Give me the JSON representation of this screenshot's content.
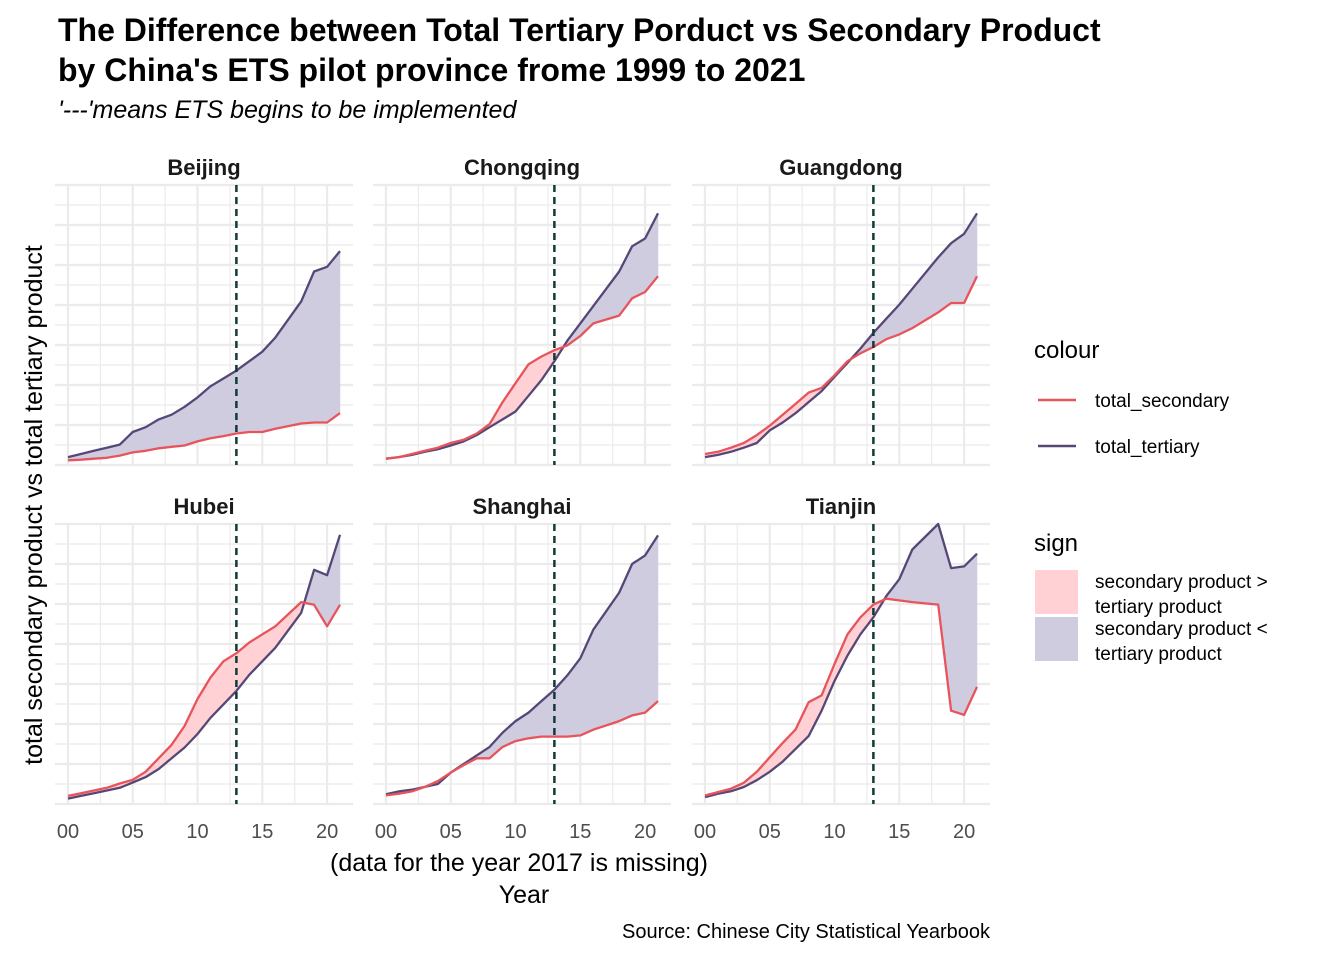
{
  "chart_data": {
    "type": "area",
    "title_lines": [
      "The Difference between Total Tertiary Porduct vs Secondary Product",
      "by China's ETS pilot province frome 1999 to 2021"
    ],
    "subtitle": "'---'means ETS begins to be implemented",
    "xlabel_lines": [
      "(data for the year 2017 is missing)",
      "Year"
    ],
    "ylabel": "total secondary product vs total tertiary product",
    "caption": "Source: Chinese City Statistical Yearbook",
    "x_ticks": [
      0,
      5,
      10,
      15,
      20
    ],
    "x_tick_labels": [
      "00",
      "05",
      "10",
      "15",
      "20"
    ],
    "xlim": [
      -1,
      22
    ],
    "ets_start_year": 13,
    "y_tick_labels_shown": false,
    "grid": true,
    "legend_position": "right",
    "legends": {
      "colour": {
        "title": "colour",
        "items": [
          {
            "label": "total_secondary",
            "color": "#E8545C"
          },
          {
            "label": "total_tertiary",
            "color": "#574777"
          }
        ]
      },
      "sign": {
        "title": "sign",
        "items": [
          {
            "label_lines": [
              "secondary product >",
              "tertiary product"
            ],
            "color": "#FFD1D4"
          },
          {
            "label_lines": [
              "secondary product <",
              "tertiary product"
            ],
            "color": "#D0CCE0"
          }
        ]
      }
    },
    "facets": [
      {
        "name": "Beijing",
        "ylim": [
          0,
          8.9
        ],
        "x": [
          0,
          1,
          2,
          3,
          4,
          5,
          6,
          7,
          8,
          9,
          10,
          11,
          12,
          13,
          14,
          15,
          16,
          18,
          19,
          20,
          21
        ],
        "total_secondary": [
          0.15,
          0.17,
          0.2,
          0.23,
          0.3,
          0.4,
          0.45,
          0.53,
          0.58,
          0.62,
          0.75,
          0.85,
          0.92,
          1.0,
          1.05,
          1.05,
          1.15,
          1.32,
          1.35,
          1.35,
          1.65
        ],
        "total_tertiary": [
          0.25,
          0.35,
          0.45,
          0.55,
          0.65,
          1.05,
          1.2,
          1.45,
          1.6,
          1.85,
          2.15,
          2.5,
          2.75,
          3.0,
          3.3,
          3.6,
          4.05,
          5.2,
          6.15,
          6.3,
          6.8
        ]
      },
      {
        "name": "Chongqing",
        "ylim": [
          0,
          8.9
        ],
        "x": [
          0,
          1,
          2,
          3,
          4,
          5,
          6,
          7,
          8,
          9,
          10,
          11,
          12,
          13,
          14,
          15,
          16,
          18,
          19,
          20,
          21
        ],
        "total_secondary": [
          0.2,
          0.25,
          0.35,
          0.45,
          0.55,
          0.7,
          0.8,
          1.0,
          1.3,
          2.0,
          2.6,
          3.2,
          3.45,
          3.65,
          3.8,
          4.1,
          4.5,
          4.75,
          5.3,
          5.5,
          6.0
        ],
        "total_tertiary": [
          0.2,
          0.25,
          0.32,
          0.42,
          0.5,
          0.62,
          0.75,
          0.95,
          1.2,
          1.45,
          1.7,
          2.2,
          2.7,
          3.3,
          3.95,
          4.5,
          5.05,
          6.15,
          6.95,
          7.2,
          8.0
        ]
      },
      {
        "name": "Guangdong",
        "ylim": [
          0,
          8.9
        ],
        "x": [
          0,
          1,
          2,
          3,
          4,
          5,
          6,
          7,
          8,
          9,
          10,
          11,
          12,
          13,
          14,
          15,
          16,
          18,
          19,
          20,
          21
        ],
        "total_secondary": [
          0.35,
          0.42,
          0.55,
          0.7,
          0.95,
          1.25,
          1.6,
          1.95,
          2.3,
          2.45,
          2.85,
          3.3,
          3.55,
          3.75,
          4.0,
          4.15,
          4.35,
          4.85,
          5.15,
          5.15,
          6.0
        ],
        "total_tertiary": [
          0.25,
          0.32,
          0.42,
          0.55,
          0.7,
          1.1,
          1.35,
          1.65,
          2.0,
          2.35,
          2.8,
          3.25,
          3.7,
          4.2,
          4.65,
          5.1,
          5.6,
          6.6,
          7.05,
          7.35,
          8.0
        ]
      },
      {
        "name": "Hubei",
        "ylim": [
          0,
          5.2
        ],
        "x": [
          0,
          1,
          2,
          3,
          4,
          5,
          6,
          7,
          8,
          9,
          10,
          11,
          12,
          13,
          14,
          15,
          16,
          18,
          19,
          20,
          21
        ],
        "total_secondary": [
          0.15,
          0.2,
          0.25,
          0.3,
          0.38,
          0.45,
          0.6,
          0.85,
          1.1,
          1.45,
          1.95,
          2.35,
          2.65,
          2.8,
          3.0,
          3.15,
          3.3,
          3.75,
          3.7,
          3.3,
          3.7
        ],
        "total_tertiary": [
          0.1,
          0.15,
          0.2,
          0.25,
          0.3,
          0.4,
          0.5,
          0.65,
          0.85,
          1.05,
          1.3,
          1.6,
          1.85,
          2.1,
          2.4,
          2.65,
          2.9,
          3.55,
          4.35,
          4.25,
          5.0
        ]
      },
      {
        "name": "Shanghai",
        "ylim": [
          0,
          4.9
        ],
        "x": [
          0,
          1,
          2,
          3,
          4,
          5,
          6,
          7,
          8,
          9,
          10,
          11,
          12,
          13,
          14,
          15,
          16,
          18,
          19,
          20,
          21
        ],
        "total_secondary": [
          0.15,
          0.18,
          0.22,
          0.3,
          0.4,
          0.55,
          0.68,
          0.8,
          0.8,
          1.0,
          1.1,
          1.15,
          1.18,
          1.18,
          1.18,
          1.2,
          1.3,
          1.45,
          1.55,
          1.6,
          1.8
        ],
        "total_tertiary": [
          0.17,
          0.22,
          0.25,
          0.3,
          0.35,
          0.55,
          0.7,
          0.85,
          1.0,
          1.25,
          1.45,
          1.6,
          1.8,
          2.0,
          2.25,
          2.55,
          3.05,
          3.7,
          4.2,
          4.35,
          4.7
        ]
      },
      {
        "name": "Tianjin",
        "ylim": [
          0,
          3.3
        ],
        "x": [
          0,
          1,
          2,
          3,
          4,
          5,
          6,
          7,
          8,
          9,
          10,
          11,
          12,
          13,
          14,
          15,
          16,
          18,
          19,
          20,
          21
        ],
        "total_secondary": [
          0.1,
          0.14,
          0.18,
          0.25,
          0.38,
          0.55,
          0.72,
          0.88,
          1.2,
          1.28,
          1.65,
          2.0,
          2.2,
          2.35,
          2.42,
          2.4,
          2.38,
          2.35,
          1.1,
          1.05,
          1.38
        ],
        "total_tertiary": [
          0.08,
          0.12,
          0.15,
          0.2,
          0.28,
          0.38,
          0.5,
          0.65,
          0.8,
          1.1,
          1.45,
          1.75,
          2.0,
          2.2,
          2.45,
          2.65,
          3.0,
          3.3,
          2.78,
          2.8,
          2.95
        ]
      }
    ]
  }
}
